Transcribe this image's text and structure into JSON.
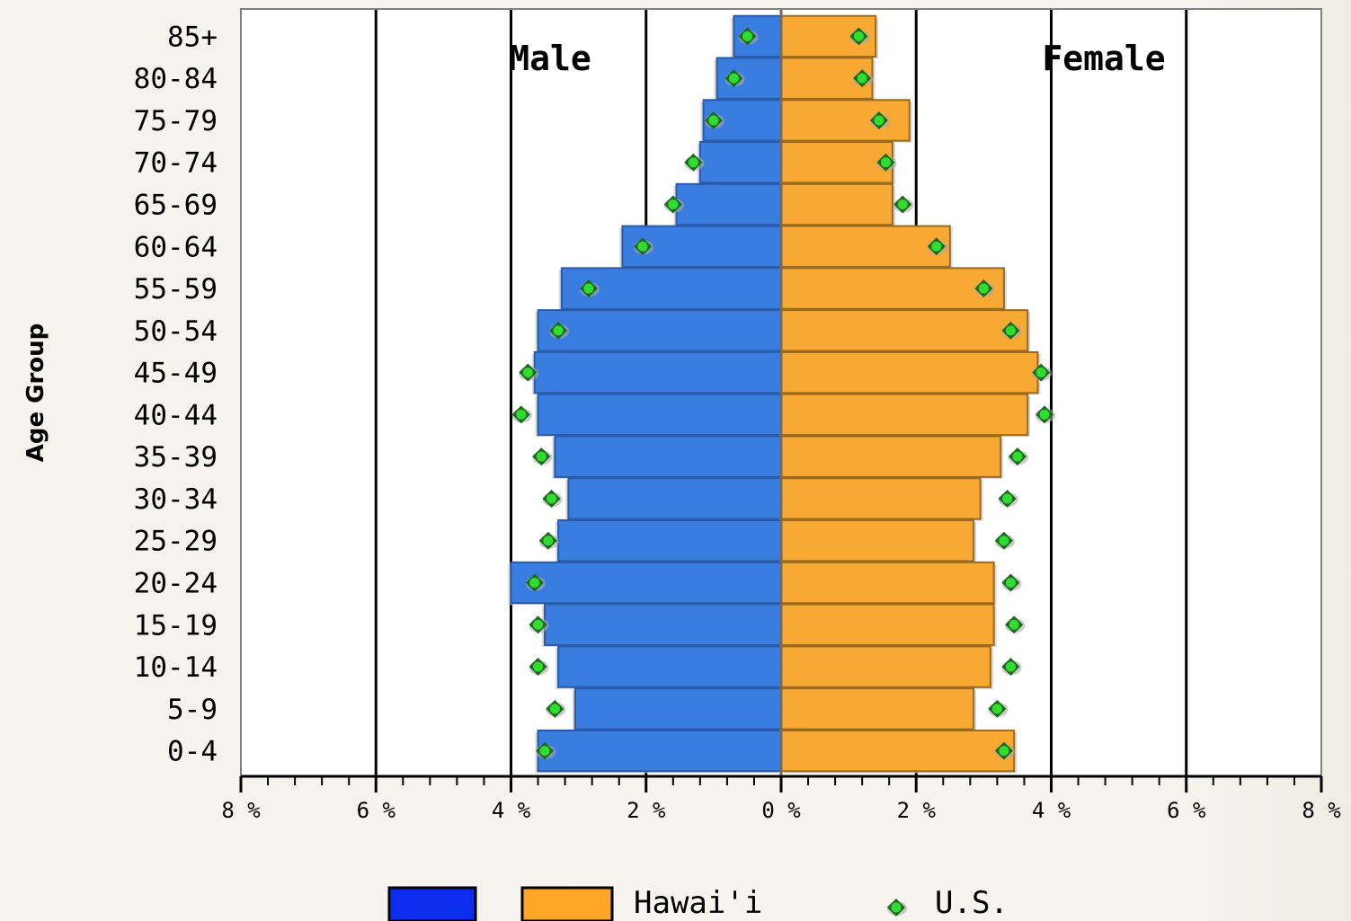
{
  "chart_data": {
    "type": "bar",
    "subtype": "population-pyramid",
    "ylabel": "Age Group",
    "side_labels": {
      "left": "Male",
      "right": "Female"
    },
    "categories": [
      "85+",
      "80-84",
      "75-79",
      "70-74",
      "65-69",
      "60-64",
      "55-59",
      "50-54",
      "45-49",
      "40-44",
      "35-39",
      "30-34",
      "25-29",
      "20-24",
      "15-19",
      "10-14",
      "5-9",
      "0-4"
    ],
    "x_ticks": [
      "8 %",
      "6 %",
      "4 %",
      "2 %",
      "0 %",
      "2 %",
      "4 %",
      "6 %",
      "8 %"
    ],
    "xlim": [
      -8,
      8
    ],
    "grid": "vertical",
    "legend_position": "bottom",
    "series": [
      {
        "name": "Hawai'i",
        "group": "Male",
        "type": "bar",
        "color": "#3a7de0",
        "values": [
          0.7,
          0.95,
          1.15,
          1.2,
          1.55,
          2.35,
          3.25,
          3.6,
          3.65,
          3.6,
          3.35,
          3.15,
          3.3,
          4.0,
          3.5,
          3.3,
          3.05,
          3.6
        ]
      },
      {
        "name": "Hawai'i",
        "group": "Female",
        "type": "bar",
        "color": "#f7a933",
        "values": [
          1.4,
          1.35,
          1.9,
          1.65,
          1.65,
          2.5,
          3.3,
          3.65,
          3.8,
          3.65,
          3.25,
          2.95,
          2.85,
          3.15,
          3.15,
          3.1,
          2.85,
          3.45
        ]
      },
      {
        "name": "U.S.",
        "group": "Male",
        "type": "scatter",
        "color": "#22c322",
        "values": [
          0.5,
          0.7,
          1.0,
          1.3,
          1.6,
          2.05,
          2.85,
          3.3,
          3.75,
          3.85,
          3.55,
          3.4,
          3.45,
          3.65,
          3.6,
          3.6,
          3.35,
          3.5
        ]
      },
      {
        "name": "U.S.",
        "group": "Female",
        "type": "scatter",
        "color": "#22c322",
        "values": [
          1.15,
          1.2,
          1.45,
          1.55,
          1.8,
          2.3,
          3.0,
          3.4,
          3.85,
          3.9,
          3.5,
          3.35,
          3.3,
          3.4,
          3.45,
          3.4,
          3.2,
          3.3
        ]
      }
    ],
    "legend": {
      "male_color": "#0c2cf0",
      "female_color": "#ffa628",
      "label": "Hawai'i",
      "dot_label": "U.S."
    }
  }
}
